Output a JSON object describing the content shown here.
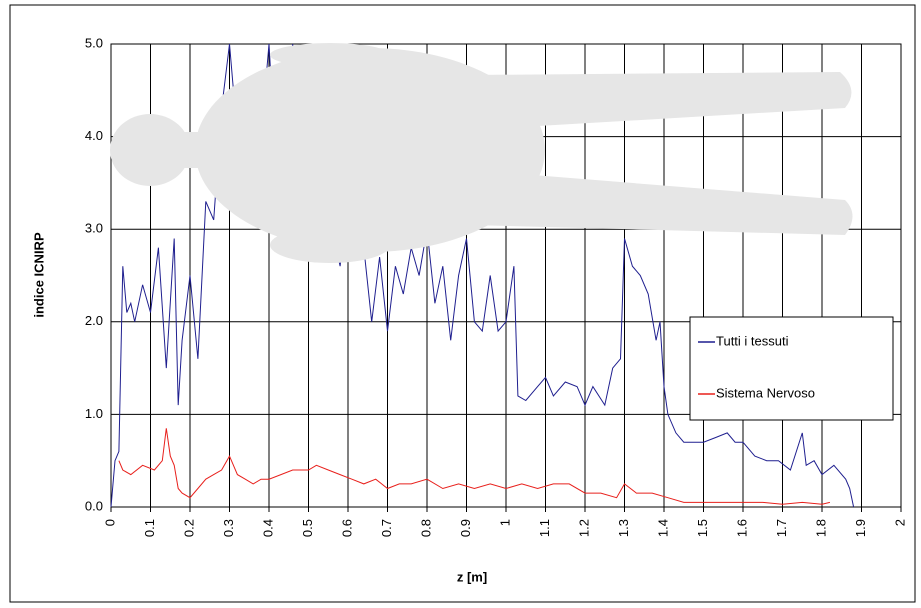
{
  "chart_data": {
    "type": "line",
    "x_label": "z [m]",
    "y_label": "indice ICNIRP",
    "xlim": [
      0,
      2
    ],
    "ylim": [
      0,
      5
    ],
    "xticks": [
      0,
      0.1,
      0.2,
      0.3,
      0.4,
      0.5,
      0.6,
      0.7,
      0.8,
      0.9,
      1,
      1.1,
      1.2,
      1.3,
      1.4,
      1.5,
      1.6,
      1.7,
      1.8,
      1.9,
      2
    ],
    "yticks": [
      {
        "value": 0,
        "label": "0.0"
      },
      {
        "value": 1,
        "label": "1.0"
      },
      {
        "value": 2,
        "label": "2.0"
      },
      {
        "value": 3,
        "label": "3.0"
      },
      {
        "value": 4,
        "label": "4.0"
      },
      {
        "value": 5,
        "label": "5.0"
      }
    ],
    "grid": true,
    "legend": "right",
    "series": [
      {
        "name": "Tutti i tessuti",
        "color": "#1f1f8f",
        "x": [
          0.0,
          0.01,
          0.02,
          0.03,
          0.04,
          0.05,
          0.06,
          0.08,
          0.1,
          0.12,
          0.14,
          0.16,
          0.17,
          0.18,
          0.2,
          0.22,
          0.24,
          0.26,
          0.28,
          0.3,
          0.32,
          0.34,
          0.36,
          0.38,
          0.4,
          0.42,
          0.44,
          0.46,
          0.48,
          0.5,
          0.52,
          0.54,
          0.56,
          0.58,
          0.6,
          0.62,
          0.64,
          0.66,
          0.68,
          0.7,
          0.72,
          0.74,
          0.76,
          0.78,
          0.8,
          0.82,
          0.84,
          0.86,
          0.88,
          0.9,
          0.92,
          0.94,
          0.96,
          0.98,
          1.0,
          1.02,
          1.03,
          1.05,
          1.08,
          1.1,
          1.12,
          1.15,
          1.18,
          1.2,
          1.22,
          1.25,
          1.27,
          1.29,
          1.3,
          1.32,
          1.34,
          1.36,
          1.38,
          1.39,
          1.4,
          1.41,
          1.43,
          1.45,
          1.48,
          1.5,
          1.53,
          1.56,
          1.58,
          1.6,
          1.63,
          1.66,
          1.69,
          1.72,
          1.75,
          1.76,
          1.78,
          1.8,
          1.83,
          1.86,
          1.87,
          1.88
        ],
        "values": [
          0,
          0.5,
          0.6,
          2.6,
          2.1,
          2.2,
          2.0,
          2.4,
          2.1,
          2.8,
          1.5,
          2.9,
          1.1,
          1.8,
          2.5,
          1.6,
          3.3,
          3.1,
          4.3,
          5.0,
          4.0,
          3.6,
          4.6,
          4.0,
          5.0,
          3.5,
          3.8,
          5.0,
          4.2,
          3.6,
          4.0,
          3.2,
          3.0,
          2.6,
          3.4,
          3.0,
          2.8,
          2.0,
          2.7,
          1.9,
          2.6,
          2.3,
          2.8,
          2.5,
          3.0,
          2.2,
          2.6,
          1.8,
          2.5,
          2.9,
          2.0,
          1.9,
          2.5,
          1.9,
          2.0,
          2.6,
          1.2,
          1.15,
          1.3,
          1.4,
          1.2,
          1.35,
          1.3,
          1.1,
          1.3,
          1.1,
          1.5,
          1.6,
          2.9,
          2.6,
          2.5,
          2.3,
          1.8,
          2.0,
          1.3,
          1.0,
          0.8,
          0.7,
          0.7,
          0.7,
          0.75,
          0.8,
          0.7,
          0.7,
          0.55,
          0.5,
          0.5,
          0.4,
          0.8,
          0.45,
          0.5,
          0.35,
          0.45,
          0.3,
          0.2,
          0.0
        ]
      },
      {
        "name": "Sistema Nervoso",
        "color": "#e8201c",
        "x": [
          0.02,
          0.03,
          0.05,
          0.08,
          0.11,
          0.13,
          0.14,
          0.15,
          0.16,
          0.17,
          0.18,
          0.2,
          0.22,
          0.24,
          0.26,
          0.28,
          0.3,
          0.32,
          0.34,
          0.36,
          0.38,
          0.4,
          0.43,
          0.46,
          0.5,
          0.52,
          0.55,
          0.58,
          0.61,
          0.64,
          0.67,
          0.7,
          0.73,
          0.76,
          0.8,
          0.84,
          0.88,
          0.92,
          0.96,
          1.0,
          1.04,
          1.08,
          1.12,
          1.16,
          1.2,
          1.24,
          1.28,
          1.3,
          1.33,
          1.37,
          1.41,
          1.45,
          1.5,
          1.55,
          1.6,
          1.65,
          1.7,
          1.75,
          1.8,
          1.82
        ],
        "values": [
          0.5,
          0.4,
          0.35,
          0.45,
          0.4,
          0.5,
          0.85,
          0.55,
          0.45,
          0.2,
          0.15,
          0.1,
          0.2,
          0.3,
          0.35,
          0.4,
          0.55,
          0.35,
          0.3,
          0.25,
          0.3,
          0.3,
          0.35,
          0.4,
          0.4,
          0.45,
          0.4,
          0.35,
          0.3,
          0.25,
          0.3,
          0.2,
          0.25,
          0.25,
          0.3,
          0.2,
          0.25,
          0.2,
          0.25,
          0.2,
          0.25,
          0.2,
          0.25,
          0.25,
          0.15,
          0.15,
          0.1,
          0.25,
          0.15,
          0.15,
          0.1,
          0.05,
          0.05,
          0.05,
          0.05,
          0.05,
          0.03,
          0.05,
          0.03,
          0.05
        ]
      }
    ]
  }
}
